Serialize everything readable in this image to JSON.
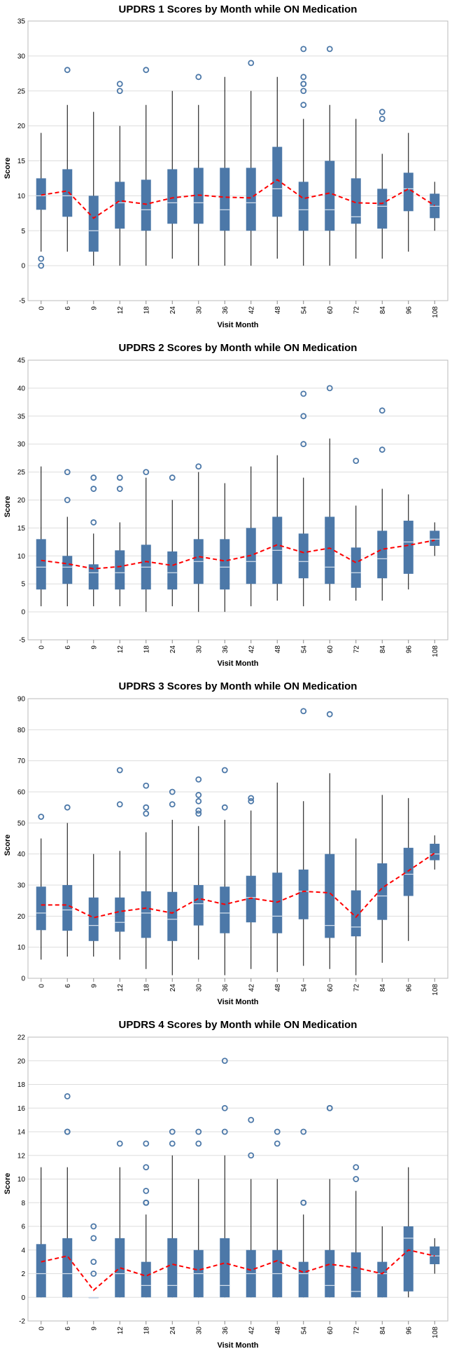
{
  "colors": {
    "box": "#4c78a8",
    "median": "#d9e3ee",
    "whisker": "#000000",
    "mean_line": "#ff0000",
    "grid": "#dddddd",
    "outlier": "#4c78a8"
  },
  "chart_data": [
    {
      "type": "boxplot",
      "title": "UPDRS 1 Scores by Month while ON Medication",
      "xlabel": "Visit Month",
      "ylabel": "Score",
      "ylim": [
        -5,
        35
      ],
      "yticks": [
        -5,
        0,
        5,
        10,
        15,
        20,
        25,
        30,
        35
      ],
      "categories": [
        "0",
        "6",
        "9",
        "12",
        "18",
        "24",
        "30",
        "36",
        "42",
        "48",
        "54",
        "60",
        "72",
        "84",
        "96",
        "108"
      ],
      "boxes": [
        {
          "min": 2,
          "q1": 8,
          "median": 10,
          "q3": 12.5,
          "max": 19,
          "outliers": [
            1,
            0
          ]
        },
        {
          "min": 2,
          "q1": 7,
          "median": 10,
          "q3": 13.8,
          "max": 23,
          "outliers": [
            28
          ]
        },
        {
          "min": 0,
          "q1": 2,
          "median": 5,
          "q3": 10,
          "max": 22,
          "outliers": []
        },
        {
          "min": 0,
          "q1": 5.3,
          "median": 9,
          "q3": 12,
          "max": 20,
          "outliers": [
            26,
            25
          ]
        },
        {
          "min": 0,
          "q1": 5,
          "median": 8,
          "q3": 12.3,
          "max": 23,
          "outliers": [
            28
          ]
        },
        {
          "min": 1,
          "q1": 6,
          "median": 9,
          "q3": 13.8,
          "max": 25,
          "outliers": []
        },
        {
          "min": 0,
          "q1": 6,
          "median": 9,
          "q3": 14,
          "max": 23,
          "outliers": [
            27
          ]
        },
        {
          "min": 0,
          "q1": 5,
          "median": 8,
          "q3": 14,
          "max": 27,
          "outliers": []
        },
        {
          "min": 0,
          "q1": 5,
          "median": 9,
          "q3": 14,
          "max": 25,
          "outliers": [
            29
          ]
        },
        {
          "min": 1,
          "q1": 7,
          "median": 11,
          "q3": 17,
          "max": 27,
          "outliers": []
        },
        {
          "min": 0,
          "q1": 5,
          "median": 8,
          "q3": 12,
          "max": 21,
          "outliers": [
            31,
            27,
            26,
            26,
            25,
            23
          ]
        },
        {
          "min": 0,
          "q1": 5,
          "median": 8,
          "q3": 15,
          "max": 23,
          "outliers": [
            31
          ]
        },
        {
          "min": 1,
          "q1": 6,
          "median": 7,
          "q3": 12.5,
          "max": 21,
          "outliers": []
        },
        {
          "min": 1,
          "q1": 5.3,
          "median": 8.5,
          "q3": 11,
          "max": 16,
          "outliers": [
            22,
            21
          ]
        },
        {
          "min": 2,
          "q1": 7.8,
          "median": 11,
          "q3": 13.3,
          "max": 19,
          "outliers": []
        },
        {
          "min": 5,
          "q1": 6.8,
          "median": 8.5,
          "q3": 10.3,
          "max": 12,
          "outliers": []
        }
      ],
      "means": [
        10.1,
        10.7,
        6.8,
        9.3,
        8.8,
        9.7,
        10.1,
        9.8,
        9.7,
        12.3,
        9.6,
        10.4,
        9.0,
        8.9,
        11.0,
        8.6
      ]
    },
    {
      "type": "boxplot",
      "title": "UPDRS 2 Scores by Month while ON Medication",
      "xlabel": "Visit Month",
      "ylabel": "Score",
      "ylim": [
        -5,
        45
      ],
      "yticks": [
        -5,
        0,
        5,
        10,
        15,
        20,
        25,
        30,
        35,
        40,
        45
      ],
      "categories": [
        "0",
        "6",
        "9",
        "12",
        "18",
        "24",
        "30",
        "36",
        "42",
        "48",
        "54",
        "60",
        "72",
        "84",
        "96",
        "108"
      ],
      "boxes": [
        {
          "min": 1,
          "q1": 4,
          "median": 8,
          "q3": 13,
          "max": 26,
          "outliers": []
        },
        {
          "min": 1,
          "q1": 5,
          "median": 8,
          "q3": 10,
          "max": 17,
          "outliers": [
            25,
            20
          ]
        },
        {
          "min": 1,
          "q1": 4,
          "median": 7,
          "q3": 8.5,
          "max": 14,
          "outliers": [
            24,
            22,
            16
          ]
        },
        {
          "min": 1,
          "q1": 4,
          "median": 7,
          "q3": 11,
          "max": 16,
          "outliers": [
            24,
            22
          ]
        },
        {
          "min": 0,
          "q1": 4,
          "median": 8,
          "q3": 12,
          "max": 24,
          "outliers": [
            25
          ]
        },
        {
          "min": 1,
          "q1": 4,
          "median": 7,
          "q3": 10.8,
          "max": 20,
          "outliers": [
            24
          ]
        },
        {
          "min": 0,
          "q1": 5,
          "median": 9,
          "q3": 13,
          "max": 25,
          "outliers": [
            26
          ]
        },
        {
          "min": 0,
          "q1": 4,
          "median": 8,
          "q3": 13,
          "max": 23,
          "outliers": []
        },
        {
          "min": 1,
          "q1": 5,
          "median": 9,
          "q3": 15,
          "max": 26,
          "outliers": []
        },
        {
          "min": 2,
          "q1": 5,
          "median": 11,
          "q3": 17,
          "max": 28,
          "outliers": []
        },
        {
          "min": 1,
          "q1": 6,
          "median": 9,
          "q3": 14,
          "max": 24,
          "outliers": [
            39,
            35,
            30
          ]
        },
        {
          "min": 2,
          "q1": 5,
          "median": 8,
          "q3": 17,
          "max": 31,
          "outliers": [
            40
          ]
        },
        {
          "min": 2,
          "q1": 4.3,
          "median": 7,
          "q3": 11.5,
          "max": 19,
          "outliers": [
            27
          ]
        },
        {
          "min": 2,
          "q1": 6,
          "median": 9.5,
          "q3": 14.5,
          "max": 22,
          "outliers": [
            36,
            29
          ]
        },
        {
          "min": 4,
          "q1": 6.8,
          "median": 12.5,
          "q3": 16.3,
          "max": 21,
          "outliers": []
        },
        {
          "min": 10,
          "q1": 11.8,
          "median": 13,
          "q3": 14.5,
          "max": 16,
          "outliers": []
        }
      ],
      "means": [
        9.2,
        8.6,
        7.7,
        8.1,
        9.0,
        8.3,
        9.9,
        9.1,
        10.1,
        12.0,
        10.6,
        11.4,
        8.8,
        11.2,
        11.9,
        12.8
      ]
    },
    {
      "type": "boxplot",
      "title": "UPDRS 3 Scores by Month while ON Medication",
      "xlabel": "Visit Month",
      "ylabel": "Score",
      "ylim": [
        0,
        90
      ],
      "yticks": [
        0,
        10,
        20,
        30,
        40,
        50,
        60,
        70,
        80,
        90
      ],
      "categories": [
        "0",
        "6",
        "9",
        "12",
        "18",
        "24",
        "30",
        "36",
        "42",
        "48",
        "54",
        "60",
        "72",
        "84",
        "96",
        "108"
      ],
      "boxes": [
        {
          "min": 6,
          "q1": 15.5,
          "median": 21,
          "q3": 29.5,
          "max": 45,
          "outliers": [
            52
          ]
        },
        {
          "min": 7,
          "q1": 15.3,
          "median": 22,
          "q3": 30,
          "max": 50,
          "outliers": [
            55
          ]
        },
        {
          "min": 7,
          "q1": 12,
          "median": 17,
          "q3": 26,
          "max": 40,
          "outliers": []
        },
        {
          "min": 6,
          "q1": 15,
          "median": 18,
          "q3": 26,
          "max": 41,
          "outliers": [
            67,
            56
          ]
        },
        {
          "min": 3,
          "q1": 13,
          "median": 21,
          "q3": 28,
          "max": 47,
          "outliers": [
            62,
            55,
            53
          ]
        },
        {
          "min": 1,
          "q1": 12,
          "median": 19,
          "q3": 27.8,
          "max": 51,
          "outliers": [
            60,
            56
          ]
        },
        {
          "min": 6,
          "q1": 17,
          "median": 24,
          "q3": 30,
          "max": 49,
          "outliers": [
            64,
            59,
            57,
            54,
            53
          ]
        },
        {
          "min": 1,
          "q1": 14.5,
          "median": 21,
          "q3": 29.5,
          "max": 51,
          "outliers": [
            67,
            55
          ]
        },
        {
          "min": 3,
          "q1": 18,
          "median": 26,
          "q3": 33,
          "max": 54,
          "outliers": [
            58,
            57
          ]
        },
        {
          "min": 2,
          "q1": 14.5,
          "median": 20,
          "q3": 34,
          "max": 63,
          "outliers": []
        },
        {
          "min": 4,
          "q1": 19,
          "median": 28,
          "q3": 35,
          "max": 57,
          "outliers": [
            86
          ]
        },
        {
          "min": 3,
          "q1": 13,
          "median": 17,
          "q3": 40,
          "max": 66,
          "outliers": [
            85
          ]
        },
        {
          "min": 1,
          "q1": 13.5,
          "median": 16.5,
          "q3": 28.3,
          "max": 45,
          "outliers": []
        },
        {
          "min": 5,
          "q1": 18.8,
          "median": 26.5,
          "q3": 37,
          "max": 59,
          "outliers": []
        },
        {
          "min": 12,
          "q1": 26.5,
          "median": 33.5,
          "q3": 42,
          "max": 58,
          "outliers": []
        },
        {
          "min": 35,
          "q1": 38,
          "median": 40,
          "q3": 43.3,
          "max": 46,
          "outliers": []
        }
      ],
      "means": [
        23.6,
        23.6,
        19.5,
        21.5,
        22.6,
        21.0,
        25.7,
        23.8,
        25.8,
        24.5,
        28.0,
        27.5,
        19.7,
        29.1,
        34.6,
        40.3
      ]
    },
    {
      "type": "boxplot",
      "title": "UPDRS 4 Scores by Month while ON Medication",
      "xlabel": "Visit Month",
      "ylabel": "Score",
      "ylim": [
        -2,
        22
      ],
      "yticks": [
        -2,
        0,
        2,
        4,
        6,
        8,
        10,
        12,
        14,
        16,
        18,
        20,
        22
      ],
      "categories": [
        "0",
        "6",
        "9",
        "12",
        "18",
        "24",
        "30",
        "36",
        "42",
        "48",
        "54",
        "60",
        "72",
        "84",
        "96",
        "108"
      ],
      "boxes": [
        {
          "min": 0,
          "q1": 0,
          "median": 2,
          "q3": 4.5,
          "max": 11,
          "outliers": []
        },
        {
          "min": 0,
          "q1": 0,
          "median": 2,
          "q3": 5,
          "max": 11,
          "outliers": [
            17,
            14,
            14
          ]
        },
        {
          "min": 0,
          "q1": 0,
          "median": 0,
          "q3": 0,
          "max": 0,
          "outliers": [
            6,
            5,
            3,
            2
          ]
        },
        {
          "min": 0,
          "q1": 0,
          "median": 2,
          "q3": 5,
          "max": 11,
          "outliers": [
            13
          ]
        },
        {
          "min": 0,
          "q1": 0,
          "median": 1,
          "q3": 3,
          "max": 7,
          "outliers": [
            13,
            11,
            9,
            8,
            8,
            8
          ]
        },
        {
          "min": 0,
          "q1": 0,
          "median": 1,
          "q3": 5,
          "max": 12,
          "outliers": [
            14,
            13
          ]
        },
        {
          "min": 0,
          "q1": 0,
          "median": 2,
          "q3": 4,
          "max": 10,
          "outliers": [
            14,
            13
          ]
        },
        {
          "min": 0,
          "q1": 0,
          "median": 1,
          "q3": 5,
          "max": 12,
          "outliers": [
            20,
            16,
            14
          ]
        },
        {
          "min": 0,
          "q1": 0,
          "median": 2,
          "q3": 4,
          "max": 10,
          "outliers": [
            15,
            12
          ]
        },
        {
          "min": 0,
          "q1": 0,
          "median": 2,
          "q3": 4,
          "max": 10,
          "outliers": [
            14,
            13
          ]
        },
        {
          "min": 0,
          "q1": 0,
          "median": 2,
          "q3": 3,
          "max": 7,
          "outliers": [
            14,
            8,
            8
          ]
        },
        {
          "min": 0,
          "q1": 0,
          "median": 1,
          "q3": 4,
          "max": 10,
          "outliers": [
            16,
            16
          ]
        },
        {
          "min": 0,
          "q1": 0,
          "median": 0.5,
          "q3": 3.8,
          "max": 9,
          "outliers": [
            11,
            10
          ]
        },
        {
          "min": 0,
          "q1": 0,
          "median": 2,
          "q3": 3,
          "max": 6,
          "outliers": []
        },
        {
          "min": 0,
          "q1": 0.5,
          "median": 5,
          "q3": 6,
          "max": 11,
          "outliers": []
        },
        {
          "min": 2,
          "q1": 2.8,
          "median": 3.5,
          "q3": 4.3,
          "max": 5,
          "outliers": []
        }
      ],
      "means": [
        3.0,
        3.5,
        0.6,
        2.5,
        1.8,
        2.8,
        2.3,
        2.9,
        2.3,
        3.1,
        2.1,
        2.8,
        2.5,
        2.0,
        4.0,
        3.5
      ]
    }
  ]
}
